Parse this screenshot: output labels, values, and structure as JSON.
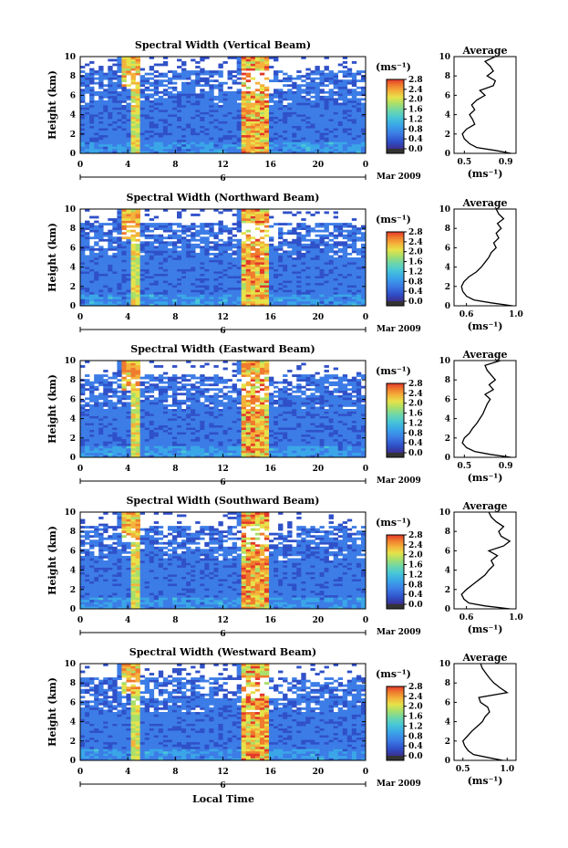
{
  "colors": {
    "scale": [
      "#3b2f8f",
      "#2f50c8",
      "#3c7ce6",
      "#3aa6e8",
      "#49c7d6",
      "#6ed6a8",
      "#a9df6a",
      "#e6e24a",
      "#f4b23a",
      "#ef7a2d",
      "#e3382a"
    ],
    "colorbar_bottom": "#333333",
    "line": "#000000"
  },
  "shared": {
    "ylabel": "Height (km)",
    "unit": "(ms⁻¹)",
    "avg_title": "Average",
    "date_label": "Mar 2009",
    "day_label": "6",
    "xlabel": "Local Time"
  },
  "chart_data": [
    {
      "type": "heatmap",
      "title": "Spectral Width (Vertical Beam)",
      "x_ticks": [
        "0",
        "4",
        "8",
        "12",
        "16",
        "20",
        "0"
      ],
      "y_ticks": [
        "0",
        "2",
        "4",
        "6",
        "8",
        "10"
      ],
      "ylim": [
        0,
        10
      ],
      "colorbar_ticks": [
        "0.0",
        "0.4",
        "0.8",
        "1.2",
        "1.6",
        "2.0",
        "2.4",
        "2.8"
      ],
      "clim": [
        0.0,
        2.8
      ],
      "profile": {
        "x_ticks": [
          "0.5",
          "0.9"
        ],
        "xlim": [
          0.4,
          1.0
        ],
        "y_ticks": [
          "0",
          "2",
          "4",
          "6",
          "8",
          "10"
        ],
        "height": [
          0,
          0.3,
          0.6,
          1,
          1.5,
          2,
          2.5,
          3,
          3.5,
          4,
          4.5,
          5,
          5.5,
          6,
          6.5,
          7,
          7.5,
          8,
          8.5,
          9,
          9.5,
          10
        ],
        "value": [
          0.95,
          0.8,
          0.62,
          0.55,
          0.5,
          0.48,
          0.52,
          0.6,
          0.58,
          0.55,
          0.6,
          0.57,
          0.62,
          0.7,
          0.65,
          0.78,
          0.8,
          0.72,
          0.78,
          0.75,
          0.7,
          0.8
        ]
      }
    },
    {
      "type": "heatmap",
      "title": "Spectral Width (Northward Beam)",
      "x_ticks": [
        "0",
        "4",
        "8",
        "12",
        "16",
        "20",
        "0"
      ],
      "y_ticks": [
        "0",
        "2",
        "4",
        "6",
        "8",
        "10"
      ],
      "ylim": [
        0,
        10
      ],
      "colorbar_ticks": [
        "0.0",
        "0.4",
        "0.8",
        "1.2",
        "1.6",
        "2.0",
        "2.4",
        "2.8"
      ],
      "clim": [
        0.0,
        2.8
      ],
      "profile": {
        "x_ticks": [
          "0.6",
          "1.0"
        ],
        "xlim": [
          0.5,
          1.0
        ],
        "y_ticks": [
          "0",
          "2",
          "4",
          "6",
          "8",
          "10"
        ],
        "height": [
          0,
          0.3,
          0.6,
          1,
          1.5,
          2,
          2.5,
          3,
          3.5,
          4,
          4.5,
          5,
          5.5,
          6,
          6.5,
          7,
          7.5,
          8,
          8.5,
          9,
          9.5,
          10
        ],
        "value": [
          0.97,
          0.8,
          0.66,
          0.6,
          0.57,
          0.56,
          0.58,
          0.62,
          0.68,
          0.72,
          0.75,
          0.78,
          0.8,
          0.84,
          0.82,
          0.86,
          0.84,
          0.88,
          0.85,
          0.9,
          0.86,
          0.84
        ]
      }
    },
    {
      "type": "heatmap",
      "title": "Spectral Width (Eastward Beam)",
      "x_ticks": [
        "0",
        "4",
        "8",
        "12",
        "16",
        "20",
        "0"
      ],
      "y_ticks": [
        "0",
        "2",
        "4",
        "6",
        "8",
        "10"
      ],
      "ylim": [
        0,
        10
      ],
      "colorbar_ticks": [
        "0.0",
        "0.4",
        "0.8",
        "1.2",
        "1.6",
        "2.0",
        "2.4",
        "2.8"
      ],
      "clim": [
        0.0,
        2.8
      ],
      "profile": {
        "x_ticks": [
          "0.5",
          "0.9"
        ],
        "xlim": [
          0.4,
          1.0
        ],
        "y_ticks": [
          "0",
          "2",
          "4",
          "6",
          "8",
          "10"
        ],
        "height": [
          0,
          0.3,
          0.6,
          1,
          1.5,
          2,
          2.5,
          3,
          3.5,
          4,
          4.5,
          5,
          5.5,
          6,
          6.5,
          7,
          7.5,
          8,
          8.5,
          9,
          9.5,
          10
        ],
        "value": [
          0.95,
          0.75,
          0.6,
          0.52,
          0.48,
          0.5,
          0.55,
          0.58,
          0.62,
          0.65,
          0.68,
          0.7,
          0.72,
          0.75,
          0.7,
          0.78,
          0.74,
          0.8,
          0.76,
          0.72,
          0.7,
          0.85
        ]
      }
    },
    {
      "type": "heatmap",
      "title": "Spectral Width (Southward Beam)",
      "x_ticks": [
        "0",
        "4",
        "8",
        "12",
        "16",
        "20",
        "0"
      ],
      "y_ticks": [
        "0",
        "2",
        "4",
        "6",
        "8",
        "10"
      ],
      "ylim": [
        0,
        10
      ],
      "colorbar_ticks": [
        "0.0",
        "0.4",
        "0.8",
        "1.2",
        "1.6",
        "2.0",
        "2.4",
        "2.8"
      ],
      "clim": [
        0.0,
        2.8
      ],
      "profile": {
        "x_ticks": [
          "0.6",
          "1.0"
        ],
        "xlim": [
          0.5,
          1.0
        ],
        "y_ticks": [
          "0",
          "2",
          "4",
          "6",
          "8",
          "10"
        ],
        "height": [
          0,
          0.3,
          0.6,
          1,
          1.5,
          2,
          2.5,
          3,
          3.5,
          4,
          4.5,
          5,
          5.5,
          6,
          6.5,
          7,
          7.5,
          8,
          8.5,
          9,
          9.5,
          10
        ],
        "value": [
          0.95,
          0.75,
          0.62,
          0.58,
          0.56,
          0.6,
          0.65,
          0.7,
          0.75,
          0.78,
          0.82,
          0.8,
          0.85,
          0.78,
          0.9,
          0.95,
          0.88,
          0.86,
          0.9,
          0.84,
          0.8,
          0.78
        ]
      }
    },
    {
      "type": "heatmap",
      "title": "Spectral Width (Westward Beam)",
      "x_ticks": [
        "0",
        "4",
        "8",
        "12",
        "16",
        "20",
        "0"
      ],
      "y_ticks": [
        "0",
        "2",
        "4",
        "6",
        "8",
        "10"
      ],
      "ylim": [
        0,
        10
      ],
      "colorbar_ticks": [
        "0.0",
        "0.4",
        "0.8",
        "1.2",
        "1.6",
        "2.0",
        "2.4",
        "2.8"
      ],
      "clim": [
        0.0,
        2.8
      ],
      "profile": {
        "x_ticks": [
          "0.5",
          "1.0"
        ],
        "xlim": [
          0.4,
          1.1
        ],
        "y_ticks": [
          "0",
          "2",
          "4",
          "6",
          "8",
          "10"
        ],
        "height": [
          0,
          0.3,
          0.6,
          1,
          1.5,
          2,
          2.5,
          3,
          3.5,
          4,
          4.5,
          5,
          5.5,
          6,
          6.5,
          7,
          7.5,
          8,
          8.5,
          9,
          9.5,
          10
        ],
        "value": [
          0.95,
          0.78,
          0.62,
          0.56,
          0.52,
          0.5,
          0.55,
          0.6,
          0.66,
          0.72,
          0.75,
          0.8,
          0.78,
          0.7,
          0.68,
          1.0,
          0.92,
          0.85,
          0.8,
          0.76,
          0.72,
          0.7
        ]
      }
    }
  ]
}
